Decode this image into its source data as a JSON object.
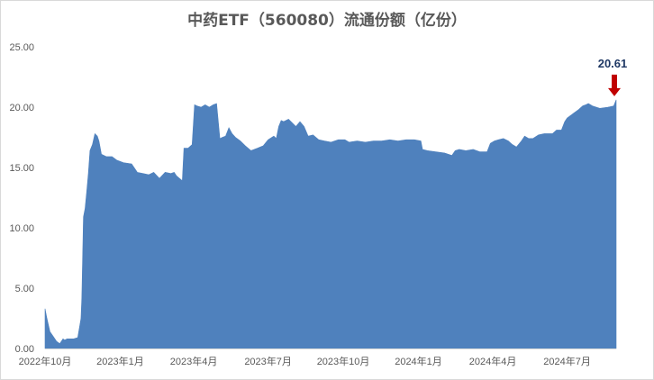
{
  "chart_data": {
    "type": "area",
    "title": "中药ETF（560080）流通份额（亿份）",
    "xlabel": "",
    "ylabel": "",
    "ylim": [
      0,
      25
    ],
    "y_ticks": [
      "0.00",
      "5.00",
      "10.00",
      "15.00",
      "20.00",
      "25.00"
    ],
    "x_ticks": [
      "2022年10月",
      "2023年1月",
      "2023年4月",
      "2023年7月",
      "2023年10月",
      "2024年1月",
      "2024年4月",
      "2024年7月"
    ],
    "x_tick_dates": [
      "2022-10-01",
      "2023-01-01",
      "2023-04-01",
      "2023-07-01",
      "2023-10-01",
      "2024-01-01",
      "2024-04-01",
      "2024-07-01"
    ],
    "x_range": [
      "2022-10-01",
      "2024-08-30"
    ],
    "grid": false,
    "legend": "none",
    "fill_color": "#4f81bd",
    "annotation": {
      "date": "2024-08-30",
      "value": 20.61,
      "text": "20.61",
      "arrow_color": "#c00000"
    },
    "series": [
      {
        "x": [
          "2022-10-01",
          "2022-10-03",
          "2022-10-07",
          "2022-10-11",
          "2022-10-15",
          "2022-10-19",
          "2022-10-23",
          "2022-10-25",
          "2022-10-28",
          "2022-11-01",
          "2022-11-05",
          "2022-11-10",
          "2022-11-14",
          "2022-11-15",
          "2022-11-17",
          "2022-11-19",
          "2022-11-21",
          "2022-11-23",
          "2022-11-25",
          "2022-11-28",
          "2022-12-01",
          "2022-12-04",
          "2022-12-06",
          "2022-12-09",
          "2022-12-15",
          "2022-12-22",
          "2022-12-28",
          "2023-01-05",
          "2023-01-15",
          "2023-01-22",
          "2023-01-29",
          "2023-02-05",
          "2023-02-11",
          "2023-02-18",
          "2023-02-25",
          "2023-03-04",
          "2023-03-08",
          "2023-03-11",
          "2023-03-18",
          "2023-03-20",
          "2023-03-25",
          "2023-03-30",
          "2023-04-02",
          "2023-04-05",
          "2023-04-10",
          "2023-04-15",
          "2023-04-20",
          "2023-04-25",
          "2023-04-29",
          "2023-05-03",
          "2023-05-06",
          "2023-05-10",
          "2023-05-14",
          "2023-05-18",
          "2023-05-22",
          "2023-05-28",
          "2023-06-03",
          "2023-06-10",
          "2023-06-18",
          "2023-06-25",
          "2023-07-01",
          "2023-07-08",
          "2023-07-11",
          "2023-07-14",
          "2023-07-17",
          "2023-07-20",
          "2023-07-26",
          "2023-08-04",
          "2023-08-09",
          "2023-08-14",
          "2023-08-19",
          "2023-08-25",
          "2023-09-01",
          "2023-09-08",
          "2023-09-16",
          "2023-09-25",
          "2023-10-03",
          "2023-10-08",
          "2023-10-18",
          "2023-10-28",
          "2023-11-07",
          "2023-11-17",
          "2023-11-27",
          "2023-12-07",
          "2023-12-17",
          "2023-12-27",
          "2024-01-04",
          "2024-01-06",
          "2024-01-12",
          "2024-01-22",
          "2024-02-02",
          "2024-02-11",
          "2024-02-15",
          "2024-02-20",
          "2024-02-28",
          "2024-03-08",
          "2024-03-16",
          "2024-03-25",
          "2024-03-29",
          "2024-04-03",
          "2024-04-08",
          "2024-04-14",
          "2024-04-20",
          "2024-04-25",
          "2024-04-30",
          "2024-05-06",
          "2024-05-10",
          "2024-05-15",
          "2024-05-20",
          "2024-05-27",
          "2024-06-03",
          "2024-06-07",
          "2024-06-13",
          "2024-06-18",
          "2024-06-24",
          "2024-06-28",
          "2024-07-01",
          "2024-07-05",
          "2024-07-11",
          "2024-07-15",
          "2024-07-20",
          "2024-07-24",
          "2024-07-27",
          "2024-08-01",
          "2024-08-10",
          "2024-08-20",
          "2024-08-27",
          "2024-08-30"
        ],
        "values": [
          3.3,
          2.6,
          1.4,
          1.0,
          0.6,
          0.4,
          0.8,
          0.7,
          0.8,
          0.8,
          0.8,
          0.9,
          2.5,
          4.2,
          10.9,
          11.6,
          13.0,
          14.5,
          16.4,
          16.9,
          17.8,
          17.6,
          17.2,
          16.1,
          15.9,
          15.9,
          15.6,
          15.4,
          15.3,
          14.6,
          14.5,
          14.4,
          14.6,
          14.1,
          14.6,
          14.5,
          14.6,
          14.3,
          13.9,
          16.6,
          16.6,
          16.9,
          20.2,
          20.1,
          20.0,
          20.2,
          20.0,
          20.2,
          20.3,
          17.4,
          17.5,
          17.6,
          18.3,
          17.8,
          17.5,
          17.2,
          16.8,
          16.4,
          16.6,
          16.8,
          17.3,
          17.6,
          17.4,
          18.4,
          18.9,
          18.8,
          19.0,
          18.4,
          18.8,
          18.4,
          17.6,
          17.7,
          17.3,
          17.2,
          17.1,
          17.3,
          17.3,
          17.1,
          17.2,
          17.1,
          17.2,
          17.2,
          17.3,
          17.2,
          17.3,
          17.3,
          17.2,
          16.5,
          16.4,
          16.3,
          16.2,
          16.0,
          16.4,
          16.5,
          16.4,
          16.5,
          16.3,
          16.3,
          17.0,
          17.2,
          17.3,
          17.4,
          17.2,
          16.9,
          16.7,
          17.2,
          17.6,
          17.4,
          17.4,
          17.7,
          17.8,
          17.8,
          17.8,
          18.1,
          18.1,
          18.8,
          19.1,
          19.3,
          19.6,
          19.8,
          20.1,
          20.2,
          20.3,
          20.1,
          19.9,
          20.0,
          20.1,
          20.61
        ]
      }
    ]
  }
}
